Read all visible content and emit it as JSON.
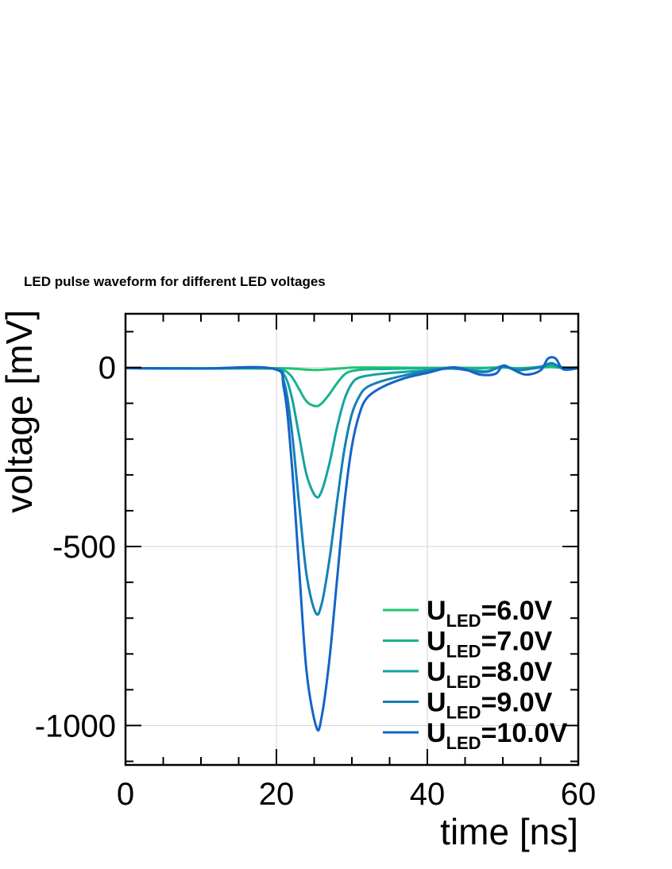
{
  "chart_data": {
    "type": "line",
    "title": "LED pulse waveform for different LED voltages",
    "xlabel": "time [ns]",
    "ylabel": "voltage [mV]",
    "xlim": [
      0,
      60
    ],
    "ylim": [
      -1110,
      150
    ],
    "grid": true,
    "legend_position": "bottom-right",
    "x_ticks": [
      "0",
      "20",
      "40",
      "60"
    ],
    "y_ticks": [
      "0",
      "-500",
      "-1000"
    ],
    "series": [
      {
        "name": "U_LED=6.0V",
        "legend_main": "U",
        "legend_sub": "LED",
        "legend_value": "=6.0V",
        "color": "#1fc46f",
        "points": [
          [
            0,
            -2
          ],
          [
            10,
            -2
          ],
          [
            20,
            -2
          ],
          [
            22,
            -3
          ],
          [
            24,
            -6
          ],
          [
            25.3,
            -7
          ],
          [
            27,
            -5
          ],
          [
            29,
            -2
          ],
          [
            31,
            0
          ],
          [
            40,
            -1
          ],
          [
            43,
            -1
          ],
          [
            47,
            -1
          ],
          [
            50,
            0
          ],
          [
            52,
            -2
          ],
          [
            55,
            0
          ],
          [
            56.5,
            1
          ],
          [
            58,
            -1
          ],
          [
            60,
            0
          ]
        ]
      },
      {
        "name": "U_LED=7.0V",
        "legend_main": "U",
        "legend_sub": "LED",
        "legend_value": "=7.0V",
        "color": "#17b48a",
        "points": [
          [
            0,
            -2
          ],
          [
            10,
            -3
          ],
          [
            19.5,
            -3
          ],
          [
            21,
            -8
          ],
          [
            22,
            -25
          ],
          [
            23,
            -60
          ],
          [
            24,
            -95
          ],
          [
            25.2,
            -108
          ],
          [
            26,
            -100
          ],
          [
            27,
            -75
          ],
          [
            28,
            -45
          ],
          [
            29,
            -20
          ],
          [
            30,
            -10
          ],
          [
            32,
            -5
          ],
          [
            35,
            -4
          ],
          [
            40,
            -2
          ],
          [
            44,
            -1
          ],
          [
            47,
            -2
          ],
          [
            50,
            0
          ],
          [
            52,
            -3
          ],
          [
            55,
            2
          ],
          [
            56.5,
            6
          ],
          [
            58,
            0
          ],
          [
            60,
            -1
          ]
        ]
      },
      {
        "name": "U_LED=8.0V",
        "legend_main": "U",
        "legend_sub": "LED",
        "legend_value": "=8.0V",
        "color": "#14a3a0",
        "points": [
          [
            0,
            -2
          ],
          [
            10,
            -3
          ],
          [
            19.5,
            -3
          ],
          [
            21,
            -20
          ],
          [
            22,
            -80
          ],
          [
            23,
            -190
          ],
          [
            24,
            -300
          ],
          [
            25.2,
            -360
          ],
          [
            26,
            -345
          ],
          [
            27,
            -270
          ],
          [
            28,
            -170
          ],
          [
            29,
            -90
          ],
          [
            30,
            -45
          ],
          [
            31,
            -28
          ],
          [
            33,
            -20
          ],
          [
            36,
            -14
          ],
          [
            40,
            -8
          ],
          [
            43,
            -3
          ],
          [
            46,
            -8
          ],
          [
            48,
            -10
          ],
          [
            50,
            2
          ],
          [
            52,
            -5
          ],
          [
            55,
            0
          ],
          [
            56.5,
            10
          ],
          [
            58,
            -2
          ],
          [
            60,
            0
          ]
        ]
      },
      {
        "name": "U_LED=9.0V",
        "legend_main": "U",
        "legend_sub": "LED",
        "legend_value": "=9.0V",
        "color": "#1480b5",
        "points": [
          [
            0,
            -2
          ],
          [
            10,
            -3
          ],
          [
            19.5,
            -3
          ],
          [
            21,
            -40
          ],
          [
            22,
            -170
          ],
          [
            23,
            -380
          ],
          [
            24,
            -580
          ],
          [
            25.2,
            -685
          ],
          [
            26,
            -660
          ],
          [
            27,
            -540
          ],
          [
            28,
            -380
          ],
          [
            29,
            -230
          ],
          [
            30,
            -130
          ],
          [
            31,
            -80
          ],
          [
            32,
            -55
          ],
          [
            34,
            -38
          ],
          [
            37,
            -22
          ],
          [
            40,
            -10
          ],
          [
            43,
            -2
          ],
          [
            46,
            -10
          ],
          [
            48,
            -12
          ],
          [
            50,
            4
          ],
          [
            52,
            -8
          ],
          [
            55,
            2
          ],
          [
            56.5,
            12
          ],
          [
            58,
            -3
          ],
          [
            60,
            0
          ]
        ]
      },
      {
        "name": "U_LED=10.0V",
        "legend_main": "U",
        "legend_sub": "LED",
        "legend_value": "=10.0V",
        "color": "#1464c8",
        "points": [
          [
            0,
            -2
          ],
          [
            10,
            -3
          ],
          [
            19.5,
            -3
          ],
          [
            21,
            -60
          ],
          [
            22,
            -260
          ],
          [
            23,
            -560
          ],
          [
            24,
            -850
          ],
          [
            25.3,
            -1005
          ],
          [
            26,
            -975
          ],
          [
            27,
            -820
          ],
          [
            28,
            -600
          ],
          [
            29,
            -380
          ],
          [
            30,
            -220
          ],
          [
            31,
            -130
          ],
          [
            32,
            -85
          ],
          [
            34,
            -55
          ],
          [
            37,
            -30
          ],
          [
            40,
            -15
          ],
          [
            43,
            0
          ],
          [
            45,
            -5
          ],
          [
            47,
            -20
          ],
          [
            49,
            -18
          ],
          [
            50,
            5
          ],
          [
            51,
            -2
          ],
          [
            53,
            -20
          ],
          [
            55,
            -8
          ],
          [
            56,
            25
          ],
          [
            57,
            25
          ],
          [
            58,
            -5
          ],
          [
            60,
            -2
          ]
        ]
      }
    ]
  }
}
